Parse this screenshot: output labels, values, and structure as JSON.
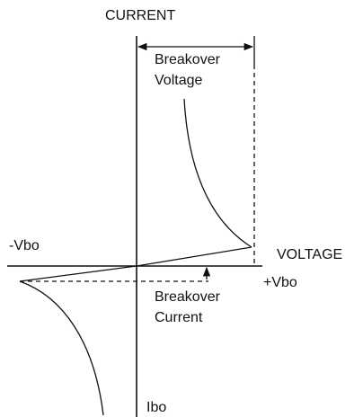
{
  "axes": {
    "y_label": "CURRENT",
    "x_label": "VOLTAGE"
  },
  "labels": {
    "breakover_voltage": [
      "Breakover",
      "Voltage"
    ],
    "breakover_current": [
      "Breakover",
      "Current"
    ],
    "neg_vbo": "-Vbo",
    "pos_vbo": "+Vbo",
    "ibo": "Ibo"
  }
}
